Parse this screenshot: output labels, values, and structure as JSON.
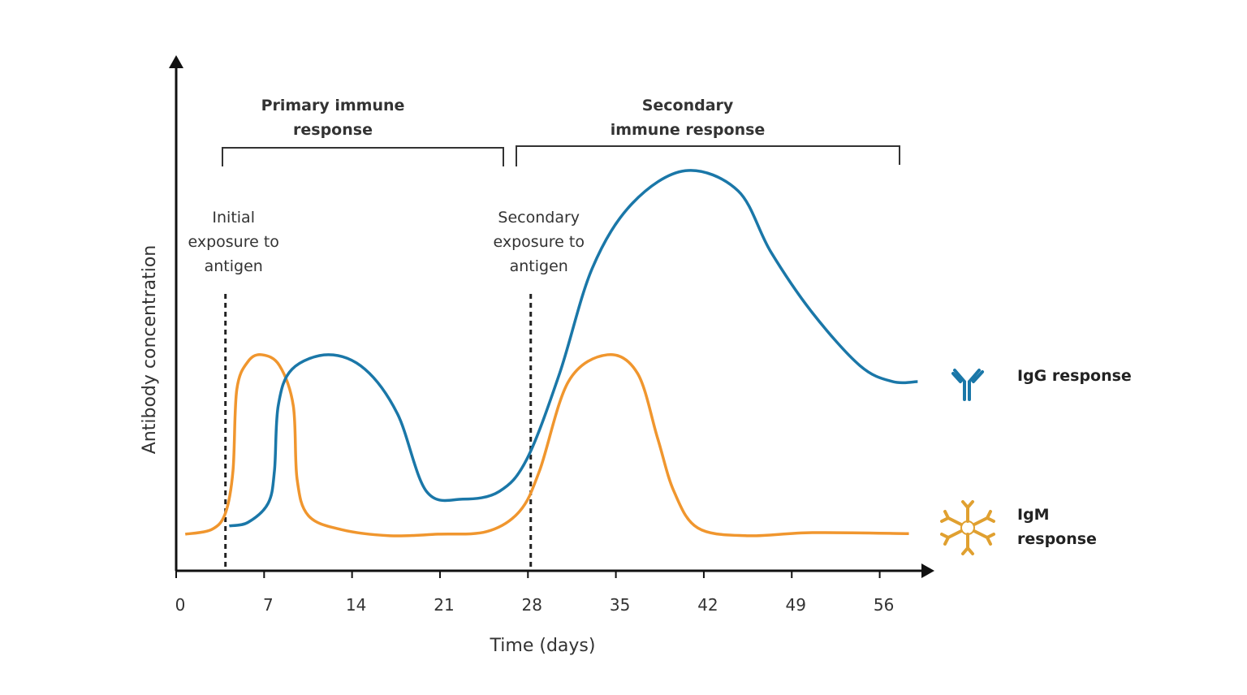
{
  "chart_data": {
    "type": "line",
    "xlabel": "Time (days)",
    "ylabel": "Antibody concentration",
    "xlim": [
      0,
      59
    ],
    "xticks": [
      0,
      7,
      14,
      21,
      28,
      35,
      42,
      49,
      56
    ],
    "ylim": [
      0,
      100
    ],
    "phases": [
      "Primary immune response",
      "Secondary immune response"
    ],
    "markers": [
      {
        "label": "Initial exposure to antigen",
        "x": 3.6
      },
      {
        "label": "Secondary exposure to antigen",
        "x": 27.9
      }
    ],
    "series": [
      {
        "name": "IgG response",
        "color": "#1a77a8",
        "x": [
          3.9,
          5.4,
          7.0,
          7.5,
          7.8,
          8.9,
          11.8,
          14.7,
          17.3,
          19.6,
          22.5,
          25.4,
          27.6,
          30.2,
          32.8,
          36.0,
          40.2,
          44.4,
          47.0,
          50.3,
          54.1,
          56.7,
          58.7
        ],
        "values": [
          8.7,
          9.4,
          13.1,
          19.4,
          32.0,
          39.1,
          41.9,
          39.1,
          30.4,
          15.4,
          13.9,
          15.4,
          21.7,
          38.3,
          58.7,
          71.3,
          77.6,
          73.7,
          61.9,
          50.1,
          39.8,
          36.7,
          36.7
        ]
      },
      {
        "name": "IgM response",
        "color": "#f0962e",
        "x": [
          0.4,
          2.5,
          3.6,
          4.2,
          4.5,
          5.4,
          6.5,
          7.9,
          9.0,
          9.3,
          10.2,
          12.8,
          16.7,
          20.5,
          24.4,
          27.0,
          28.6,
          30.9,
          34.0,
          36.4,
          38.0,
          39.3,
          41.2,
          45.1,
          50.3,
          58.0
        ],
        "values": [
          7.1,
          8.0,
          11.2,
          19.4,
          35.1,
          40.6,
          41.9,
          39.8,
          32.0,
          17.8,
          10.7,
          8.0,
          6.8,
          7.1,
          7.6,
          11.5,
          19.4,
          36.7,
          41.9,
          38.3,
          25.7,
          15.4,
          8.3,
          6.8,
          7.4,
          7.2
        ]
      }
    ]
  }
}
